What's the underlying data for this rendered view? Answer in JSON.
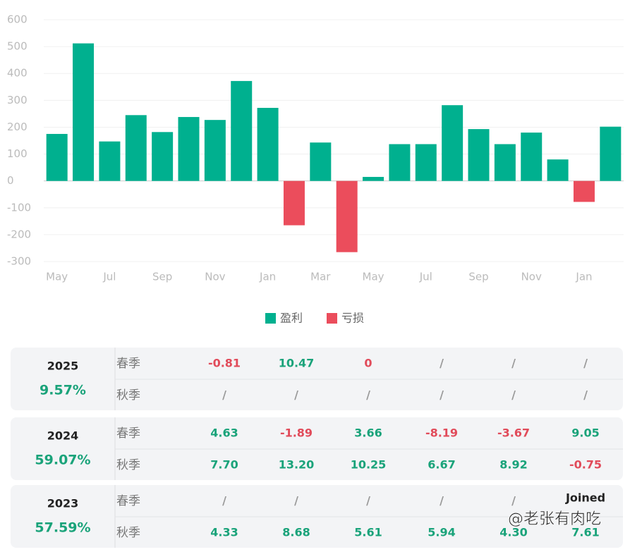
{
  "chart_data": {
    "type": "bar",
    "categories": [
      "May",
      null,
      "Jul",
      null,
      "Sep",
      null,
      "Nov",
      null,
      "Jan",
      null,
      "Mar",
      null,
      "May",
      null,
      "Jul",
      null,
      "Sep",
      null,
      "Nov",
      null,
      "Jan",
      null
    ],
    "series": [
      {
        "name": "盈利",
        "color": "#00b08f",
        "values": [
          175,
          512,
          147,
          245,
          182,
          238,
          227,
          372,
          272,
          null,
          143,
          null,
          15,
          137,
          137,
          282,
          193,
          137,
          180,
          80,
          null,
          202
        ]
      },
      {
        "name": "亏损",
        "color": "#eb4d5c",
        "values": [
          null,
          null,
          null,
          null,
          null,
          null,
          null,
          null,
          null,
          -165,
          null,
          -265,
          null,
          null,
          null,
          null,
          null,
          null,
          null,
          null,
          -78,
          null
        ]
      }
    ],
    "ylim": [
      -300,
      600
    ],
    "yticks": [
      -300,
      -200,
      -100,
      0,
      100,
      200,
      300,
      400,
      500,
      600
    ],
    "grid": true
  },
  "table": {
    "blocks": [
      {
        "year": "2025",
        "total": "9.57%",
        "rows": [
          {
            "label": "春季",
            "values": [
              "-0.81",
              "10.47",
              "0",
              "/",
              "/",
              "/"
            ]
          },
          {
            "label": "秋季",
            "values": [
              "/",
              "/",
              "/",
              "/",
              "/",
              "/"
            ]
          }
        ]
      },
      {
        "year": "2024",
        "total": "59.07%",
        "rows": [
          {
            "label": "春季",
            "values": [
              "4.63",
              "-1.89",
              "3.66",
              "-8.19",
              "-3.67",
              "9.05"
            ]
          },
          {
            "label": "秋季",
            "values": [
              "7.70",
              "13.20",
              "10.25",
              "6.67",
              "8.92",
              "-0.75"
            ]
          }
        ]
      },
      {
        "year": "2023",
        "total": "57.59%",
        "rows": [
          {
            "label": "春季",
            "values": [
              "/",
              "/",
              "/",
              "/",
              "/",
              "Joined"
            ]
          },
          {
            "label": "秋季",
            "values": [
              "4.33",
              "8.68",
              "5.61",
              "5.94",
              "4.30",
              "7.61"
            ]
          }
        ]
      }
    ]
  },
  "watermark": "@老张有肉吃"
}
